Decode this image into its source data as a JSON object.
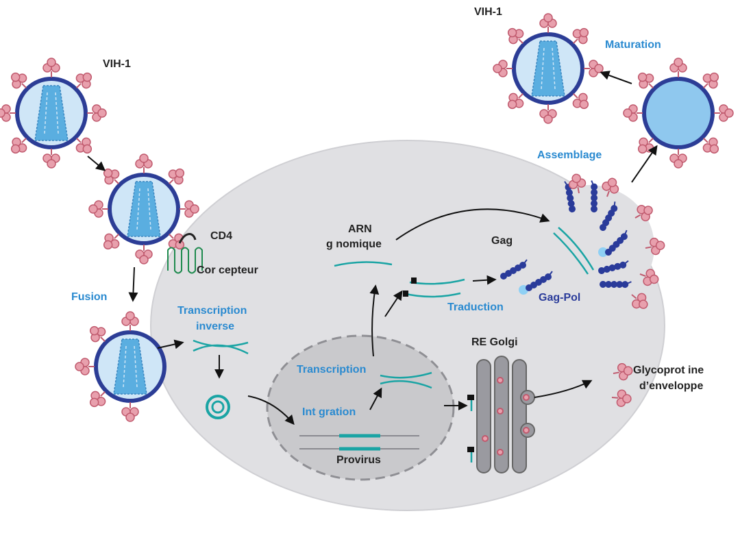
{
  "colors": {
    "cell": "#e0e0e3",
    "nucleus": "#c9c9cc",
    "virus_ring": "#2c3d96",
    "virus_fill": "#cfe6f7",
    "capsid": "#5aaee0",
    "glycoprotein": "#d9788a",
    "rna": "#1aa4a4",
    "label_blue": "#2a8ad0",
    "label_dark": "#222222",
    "gag": "#2a3b9a"
  },
  "labels": {
    "vih1_left": "VIH-1",
    "vih1_right": "VIH-1",
    "maturation": "Maturation",
    "assemblage": "Assemblage",
    "cd4": "CD4",
    "corecepteur": "Cor cepteur",
    "fusion": "Fusion",
    "transcription_inverse_1": "Transcription",
    "transcription_inverse_2": "inverse",
    "arn_1": "ARN",
    "arn_2": "g nomique",
    "gag": "Gag",
    "gag_pol": "Gag-Pol",
    "traduction": "Traduction",
    "transcription": "Transcription",
    "integration": "Int gration",
    "provirus": "Provirus",
    "re_golgi": "RE Golgi",
    "glycoproteine_1": "Glycoprot ine",
    "glycoproteine_2": "d’enveloppe"
  },
  "icons": [
    "virion-icon",
    "capsid-icon",
    "glycoprotein-icon",
    "rna-strand-icon",
    "gag-protein-icon",
    "golgi-icon",
    "arrow-icon"
  ]
}
